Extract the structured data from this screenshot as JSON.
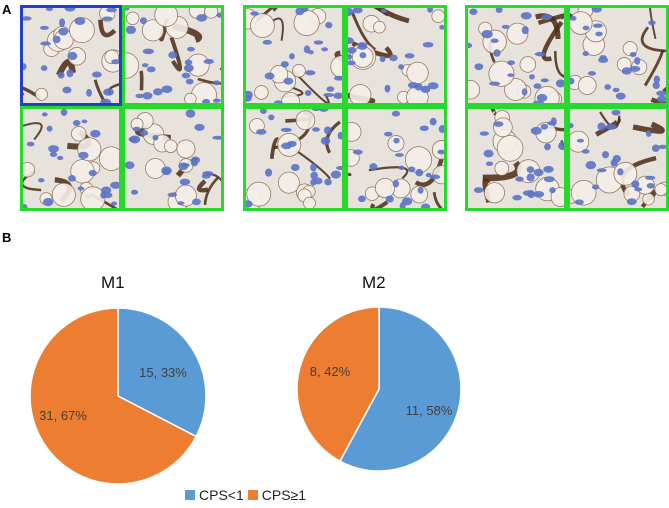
{
  "panel_labels": {
    "a": "A",
    "b": "B"
  },
  "micrographs": {
    "description_icons": [
      "ihc-micrograph-tile"
    ],
    "colors": {
      "frame_green": "#27d92b",
      "frame_blue": "#2040c8",
      "hematoxylin": "#5b73c6",
      "dab": "#4a2a14",
      "background": "#e7e2dc"
    },
    "panels": [
      {
        "frames": [
          "blue",
          "green",
          "green",
          "green"
        ]
      },
      {
        "frames": [
          "green",
          "green",
          "green",
          "green"
        ]
      },
      {
        "frames": [
          "green",
          "green",
          "green",
          "green"
        ]
      }
    ]
  },
  "chart_data": [
    {
      "type": "pie",
      "title": "M1",
      "slices": [
        {
          "name": "CPS<1",
          "value": 15,
          "percent": 33,
          "label": "15, 33%",
          "color": "#5b9bd5"
        },
        {
          "name": "CPS≥1",
          "value": 31,
          "percent": 67,
          "label": "31, 67%",
          "color": "#ed7d31"
        }
      ]
    },
    {
      "type": "pie",
      "title": "M2",
      "slices": [
        {
          "name": "CPS<1",
          "value": 11,
          "percent": 58,
          "label": "11, 58%",
          "color": "#5b9bd5"
        },
        {
          "name": "CPS≥1",
          "value": 8,
          "percent": 42,
          "label": "8, 42%",
          "color": "#ed7d31"
        }
      ]
    }
  ],
  "legend": {
    "placement": "bottom",
    "items": [
      {
        "label": "CPS<1",
        "color": "#5b9bd5"
      },
      {
        "label": "CPS≥1",
        "color": "#ed7d31"
      }
    ]
  }
}
